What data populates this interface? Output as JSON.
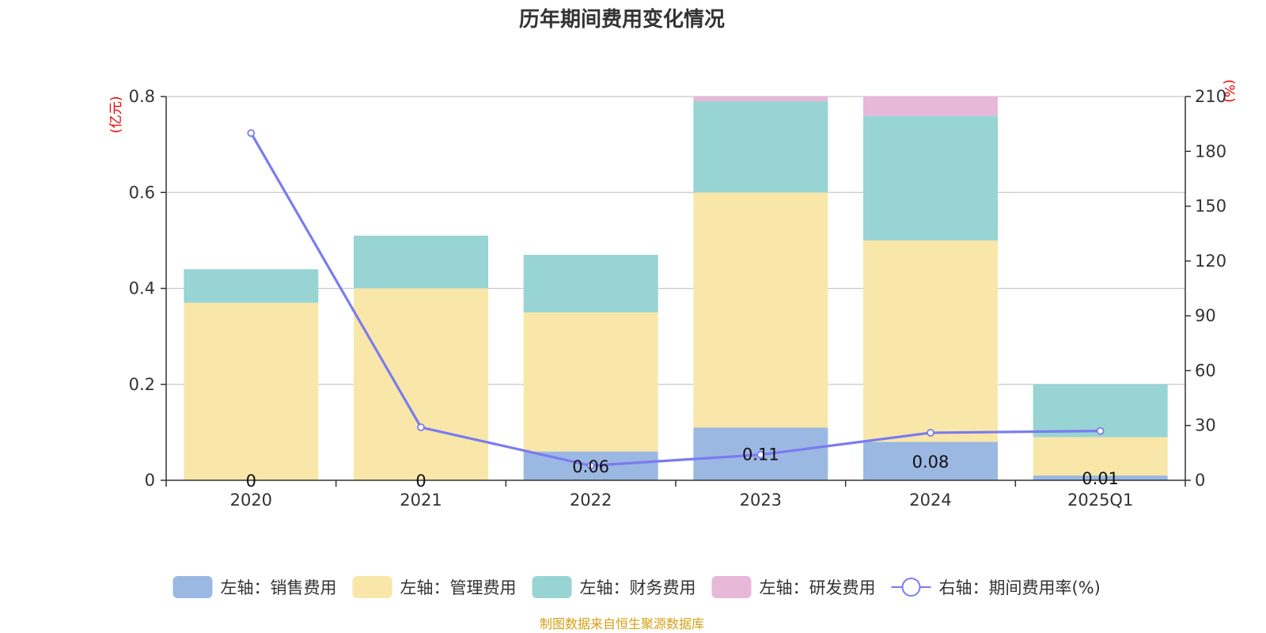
{
  "chart_data": {
    "type": "bar",
    "title": "历年期间费用变化情况",
    "categories": [
      "2020",
      "2021",
      "2022",
      "2023",
      "2024",
      "2025Q1"
    ],
    "left_axis": {
      "unit": "(亿元)",
      "ylim": [
        0,
        0.8
      ],
      "ticks": [
        "0",
        "0.2",
        "0.4",
        "0.6",
        "0.8"
      ],
      "tick_values": [
        0,
        0.2,
        0.4,
        0.6,
        0.8
      ]
    },
    "right_axis": {
      "unit": "(%)",
      "ylim": [
        0,
        210
      ],
      "ticks": [
        "0",
        "30",
        "60",
        "90",
        "120",
        "150",
        "180",
        "210"
      ],
      "tick_values": [
        0,
        30,
        60,
        90,
        120,
        150,
        180,
        210
      ]
    },
    "series": [
      {
        "name": "左轴：销售费用",
        "axis": "left",
        "kind": "bar",
        "color": "#9bb8e2",
        "values": [
          0,
          0,
          0.06,
          0.11,
          0.08,
          0.01
        ],
        "labels": [
          "0",
          "0",
          "0.06",
          "0.11",
          "0.08",
          "0.01"
        ]
      },
      {
        "name": "左轴：管理费用",
        "axis": "left",
        "kind": "bar",
        "color": "#f8e7a9",
        "values": [
          0.37,
          0.4,
          0.29,
          0.49,
          0.42,
          0.08
        ]
      },
      {
        "name": "左轴：财务费用",
        "axis": "left",
        "kind": "bar",
        "color": "#98d4d4",
        "values": [
          0.07,
          0.11,
          0.12,
          0.19,
          0.26,
          0.11
        ]
      },
      {
        "name": "左轴：研发费用",
        "axis": "left",
        "kind": "bar",
        "color": "#e8b8d8",
        "values": [
          0,
          0,
          0,
          0.01,
          0.04,
          0
        ]
      },
      {
        "name": "右轴：期间费用率(%)",
        "axis": "right",
        "kind": "line",
        "color": "#7b7bef",
        "values": [
          190,
          29,
          8,
          14,
          26,
          27
        ]
      }
    ],
    "source": "制图数据来自恒生聚源数据库"
  }
}
